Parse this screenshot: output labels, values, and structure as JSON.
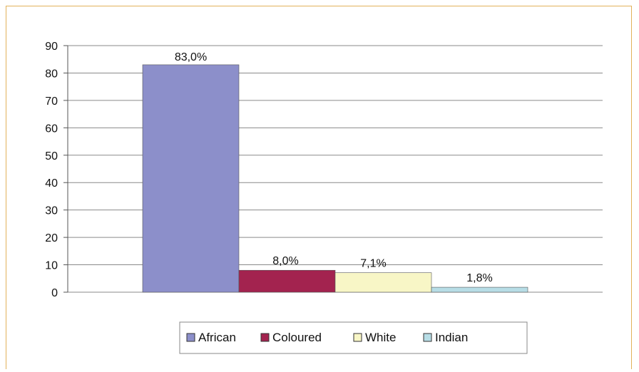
{
  "chart_data": {
    "type": "bar",
    "categories": [
      "African",
      "Coloured",
      "White",
      "Indian"
    ],
    "values": [
      83.0,
      8.0,
      7.1,
      1.8
    ],
    "data_labels": [
      "83,0%",
      "8,0%",
      "7,1%",
      "1,8%"
    ],
    "ylim": [
      0,
      90
    ],
    "yticks": [
      "0",
      "10",
      "20",
      "30",
      "40",
      "50",
      "60",
      "70",
      "80",
      "90"
    ],
    "grid": true,
    "legend_position": "bottom",
    "colors": {
      "African": "#8c8fca",
      "Coloured": "#a3234f",
      "White": "#f8f6c6",
      "Indian": "#b7dde6"
    }
  }
}
